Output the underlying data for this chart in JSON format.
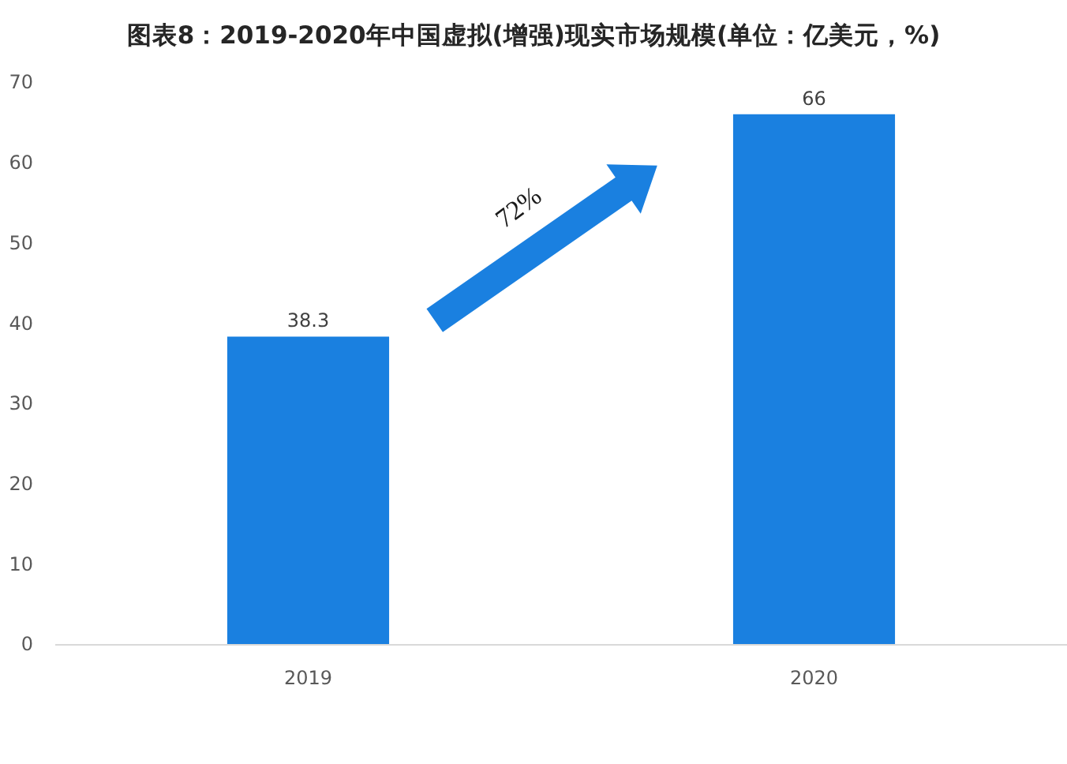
{
  "chart_data": {
    "type": "bar",
    "title": "图表8：2019-2020年中国虚拟(增强)现实市场规模(单位：亿美元，%)",
    "categories": [
      "2019",
      "2020"
    ],
    "values": [
      38.3,
      66
    ],
    "color": "#1a80e0",
    "ylim": [
      0,
      70
    ],
    "yticks": [
      0,
      10,
      20,
      30,
      40,
      50,
      60,
      70
    ],
    "data_labels": true,
    "annotations": [
      "72%"
    ]
  }
}
